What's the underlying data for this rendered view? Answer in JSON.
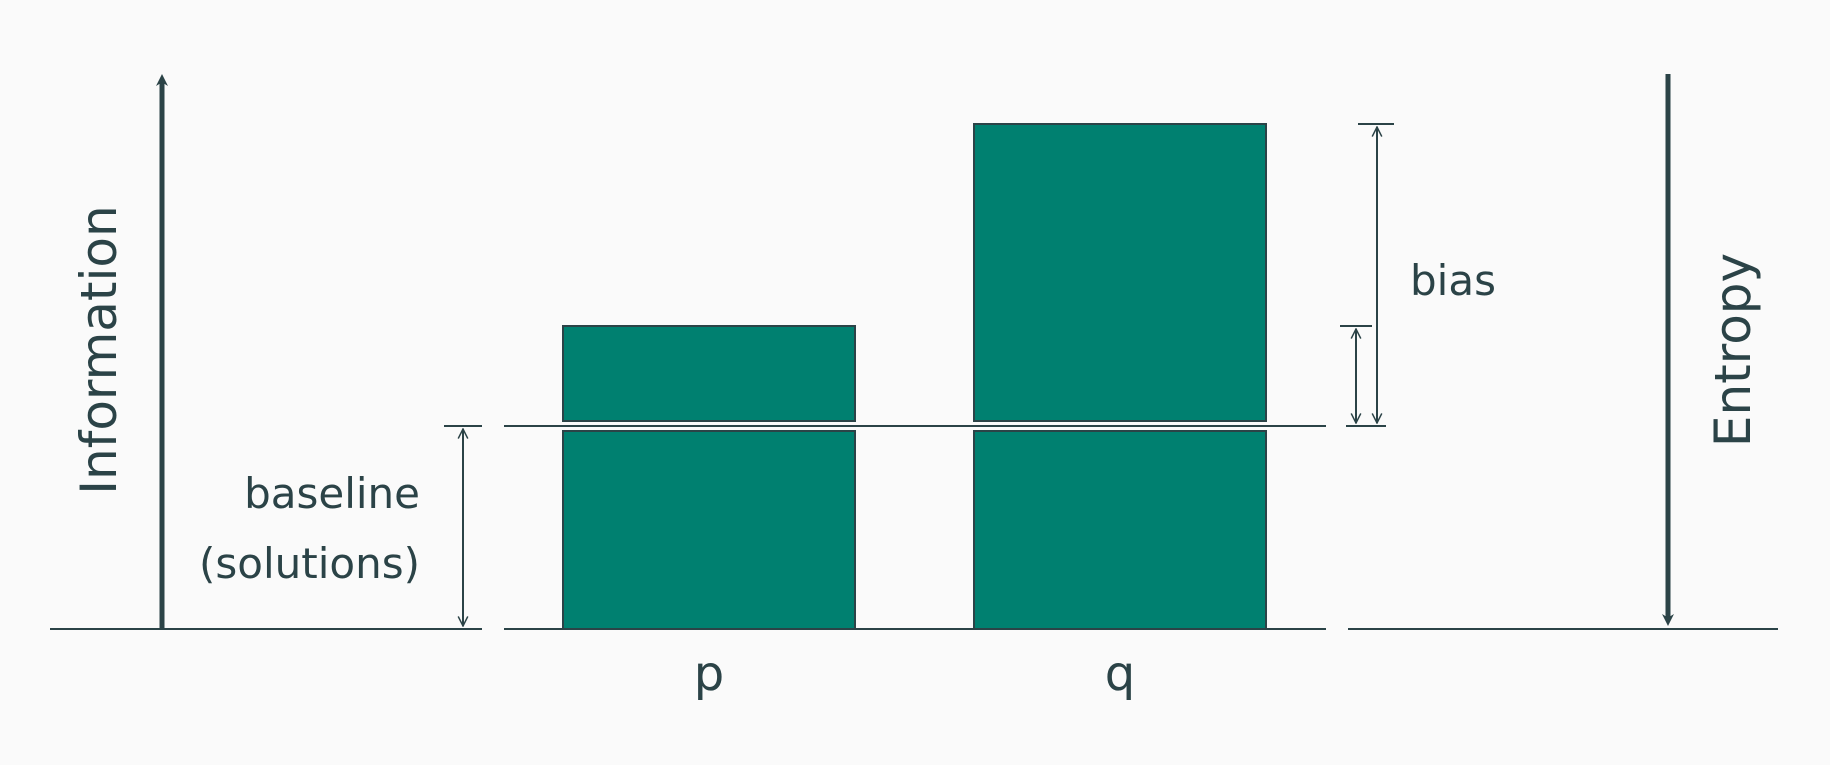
{
  "axes": {
    "left_label": "Information",
    "right_label": "Entropy"
  },
  "bars": [
    {
      "label": "p",
      "value": 0.6
    },
    {
      "label": "q",
      "value": 1.0
    }
  ],
  "baseline_level": 0.4,
  "annotations": {
    "baseline_line1": "baseline",
    "baseline_line2": "(solutions)",
    "bias": "bias"
  },
  "colors": {
    "bar_fill": "#008070",
    "stroke": "#2b4347",
    "background": "#fafafa"
  }
}
